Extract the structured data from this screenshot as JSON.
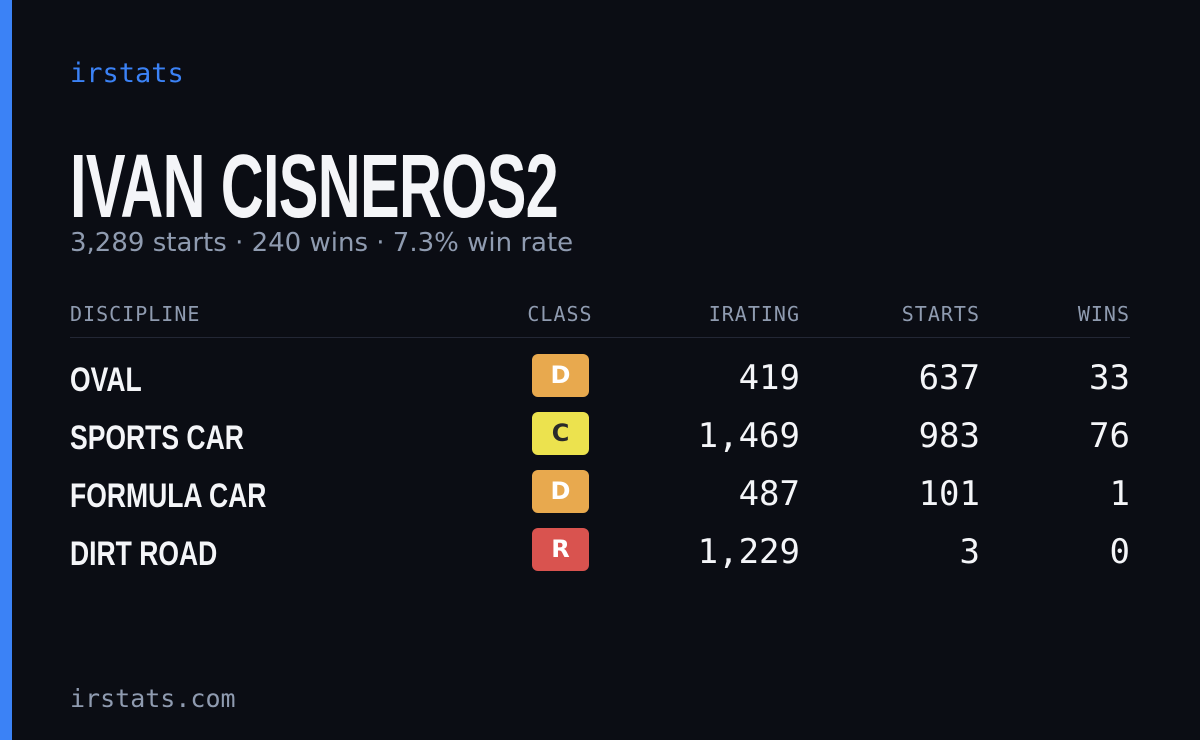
{
  "brand": "irstats",
  "profile": {
    "name": "IVAN CISNEROS2",
    "summary": "3,289 starts · 240 wins · 7.3% win rate"
  },
  "table": {
    "headers": [
      "DISCIPLINE",
      "CLASS",
      "IRATING",
      "STARTS",
      "WINS"
    ],
    "rows": [
      {
        "discipline": "OVAL",
        "class": "D",
        "class_color": "#e8a94e",
        "irating": "419",
        "starts": "637",
        "wins": "33"
      },
      {
        "discipline": "SPORTS CAR",
        "class": "C",
        "class_color": "#ece24e",
        "irating": "1,469",
        "starts": "983",
        "wins": "76"
      },
      {
        "discipline": "FORMULA CAR",
        "class": "D",
        "class_color": "#e8a94e",
        "irating": "487",
        "starts": "101",
        "wins": "1"
      },
      {
        "discipline": "DIRT ROAD",
        "class": "R",
        "class_color": "#d9534f",
        "irating": "1,229",
        "starts": "3",
        "wins": "0"
      }
    ]
  },
  "footer": "irstats.com"
}
